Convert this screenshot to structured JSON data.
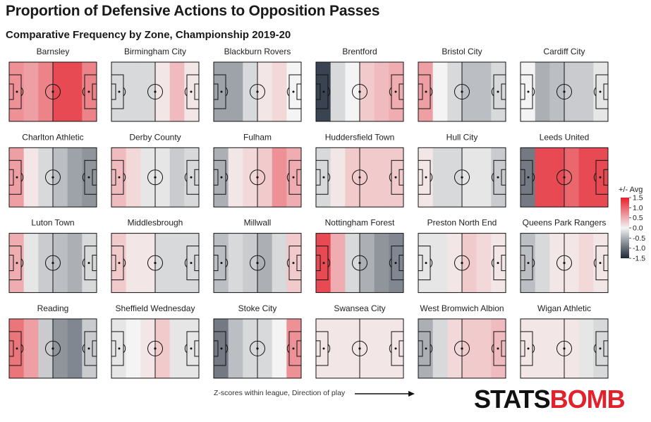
{
  "title": "Proportion of Defensive Actions to Opposition Passes",
  "subtitle": "Comparative Frequency by Zone, Championship 2019-20",
  "footnote": "Z-scores within league, Direction of play",
  "brand": {
    "part1": "STATS",
    "part2": "BOMB"
  },
  "chart_data": {
    "type": "heatmap",
    "zones_per_pitch": 6,
    "color_scale": {
      "min": -1.5,
      "max": 1.5,
      "low_color": "#1d2838",
      "mid_color": "#f4f4f4",
      "high_color": "#e4202a"
    },
    "legend": {
      "title": "+/- Avg",
      "ticks": [
        "1.5",
        "1.0",
        "0.5",
        "0.0",
        "-0.5",
        "-1.0",
        "-1.5"
      ],
      "tick_values": [
        1.5,
        1.0,
        0.5,
        0.0,
        -0.5,
        -1.0,
        -1.5
      ],
      "placement": "right"
    },
    "teams": [
      {
        "name": "Barnsley",
        "values": [
          0.7,
          0.6,
          0.8,
          1.2,
          1.2,
          0.8
        ]
      },
      {
        "name": "Birmingham City",
        "values": [
          -0.2,
          -0.2,
          -0.2,
          0.1,
          0.4,
          0.1
        ]
      },
      {
        "name": "Blackburn Rovers",
        "values": [
          -0.6,
          -0.6,
          -0.2,
          0.1,
          0.2,
          0.0
        ]
      },
      {
        "name": "Brentford",
        "values": [
          -1.3,
          -0.2,
          0.0,
          0.3,
          0.4,
          0.5
        ]
      },
      {
        "name": "Bristol City",
        "values": [
          0.6,
          0.0,
          -0.2,
          -0.4,
          -0.4,
          -0.2
        ]
      },
      {
        "name": "Cardiff City",
        "values": [
          0.0,
          -0.5,
          -0.4,
          -0.3,
          -0.3,
          -0.1
        ]
      },
      {
        "name": "Charlton Athletic",
        "values": [
          0.6,
          0.1,
          -0.2,
          -0.4,
          -0.6,
          -0.7
        ]
      },
      {
        "name": "Derby County",
        "values": [
          0.4,
          0.2,
          -0.1,
          -0.1,
          -0.3,
          -0.2
        ]
      },
      {
        "name": "Fulham",
        "values": [
          -0.5,
          0.1,
          0.2,
          0.3,
          0.7,
          0.5
        ]
      },
      {
        "name": "Huddersfield Town",
        "values": [
          -0.2,
          0.1,
          0.3,
          0.3,
          0.3,
          0.3
        ]
      },
      {
        "name": "Hull City",
        "values": [
          0.1,
          -0.2,
          -0.2,
          -0.1,
          -0.1,
          -0.3
        ]
      },
      {
        "name": "Leeds United",
        "values": [
          -0.9,
          1.2,
          1.2,
          1.0,
          1.2,
          1.2
        ]
      },
      {
        "name": "Luton Town",
        "values": [
          0.5,
          -0.1,
          -0.3,
          -0.4,
          -0.5,
          -0.2
        ]
      },
      {
        "name": "Middlesbrough",
        "values": [
          0.3,
          0.1,
          0.1,
          -0.2,
          -0.2,
          -0.2
        ]
      },
      {
        "name": "Millwall",
        "values": [
          -0.4,
          -0.2,
          -0.3,
          -0.5,
          -0.2,
          0.3
        ]
      },
      {
        "name": "Nottingham Forest",
        "values": [
          1.2,
          0.5,
          -0.2,
          -0.5,
          -0.7,
          -0.8
        ]
      },
      {
        "name": "Preston North End",
        "values": [
          -0.1,
          -0.1,
          0.1,
          0.3,
          0.2,
          0.1
        ]
      },
      {
        "name": "Queens Park Rangers",
        "values": [
          -0.4,
          -0.2,
          0.1,
          0.1,
          0.2,
          0.1
        ]
      },
      {
        "name": "Reading",
        "values": [
          0.9,
          0.6,
          -0.3,
          -0.7,
          -0.8,
          -0.3
        ]
      },
      {
        "name": "Sheffield Wednesday",
        "values": [
          -0.1,
          0.0,
          0.1,
          0.3,
          -0.1,
          -0.1
        ]
      },
      {
        "name": "Stoke City",
        "values": [
          -0.9,
          -0.4,
          -0.2,
          -0.2,
          0.0,
          0.7
        ]
      },
      {
        "name": "Swansea City",
        "values": [
          0.1,
          0.1,
          0.1,
          0.1,
          0.1,
          0.1
        ]
      },
      {
        "name": "West Bromwich Albion",
        "values": [
          -0.5,
          -0.2,
          0.2,
          0.3,
          0.3,
          0.4
        ]
      },
      {
        "name": "Wigan Athletic",
        "values": [
          0.1,
          0.1,
          0.1,
          0.1,
          -0.1,
          -0.2
        ]
      }
    ]
  }
}
